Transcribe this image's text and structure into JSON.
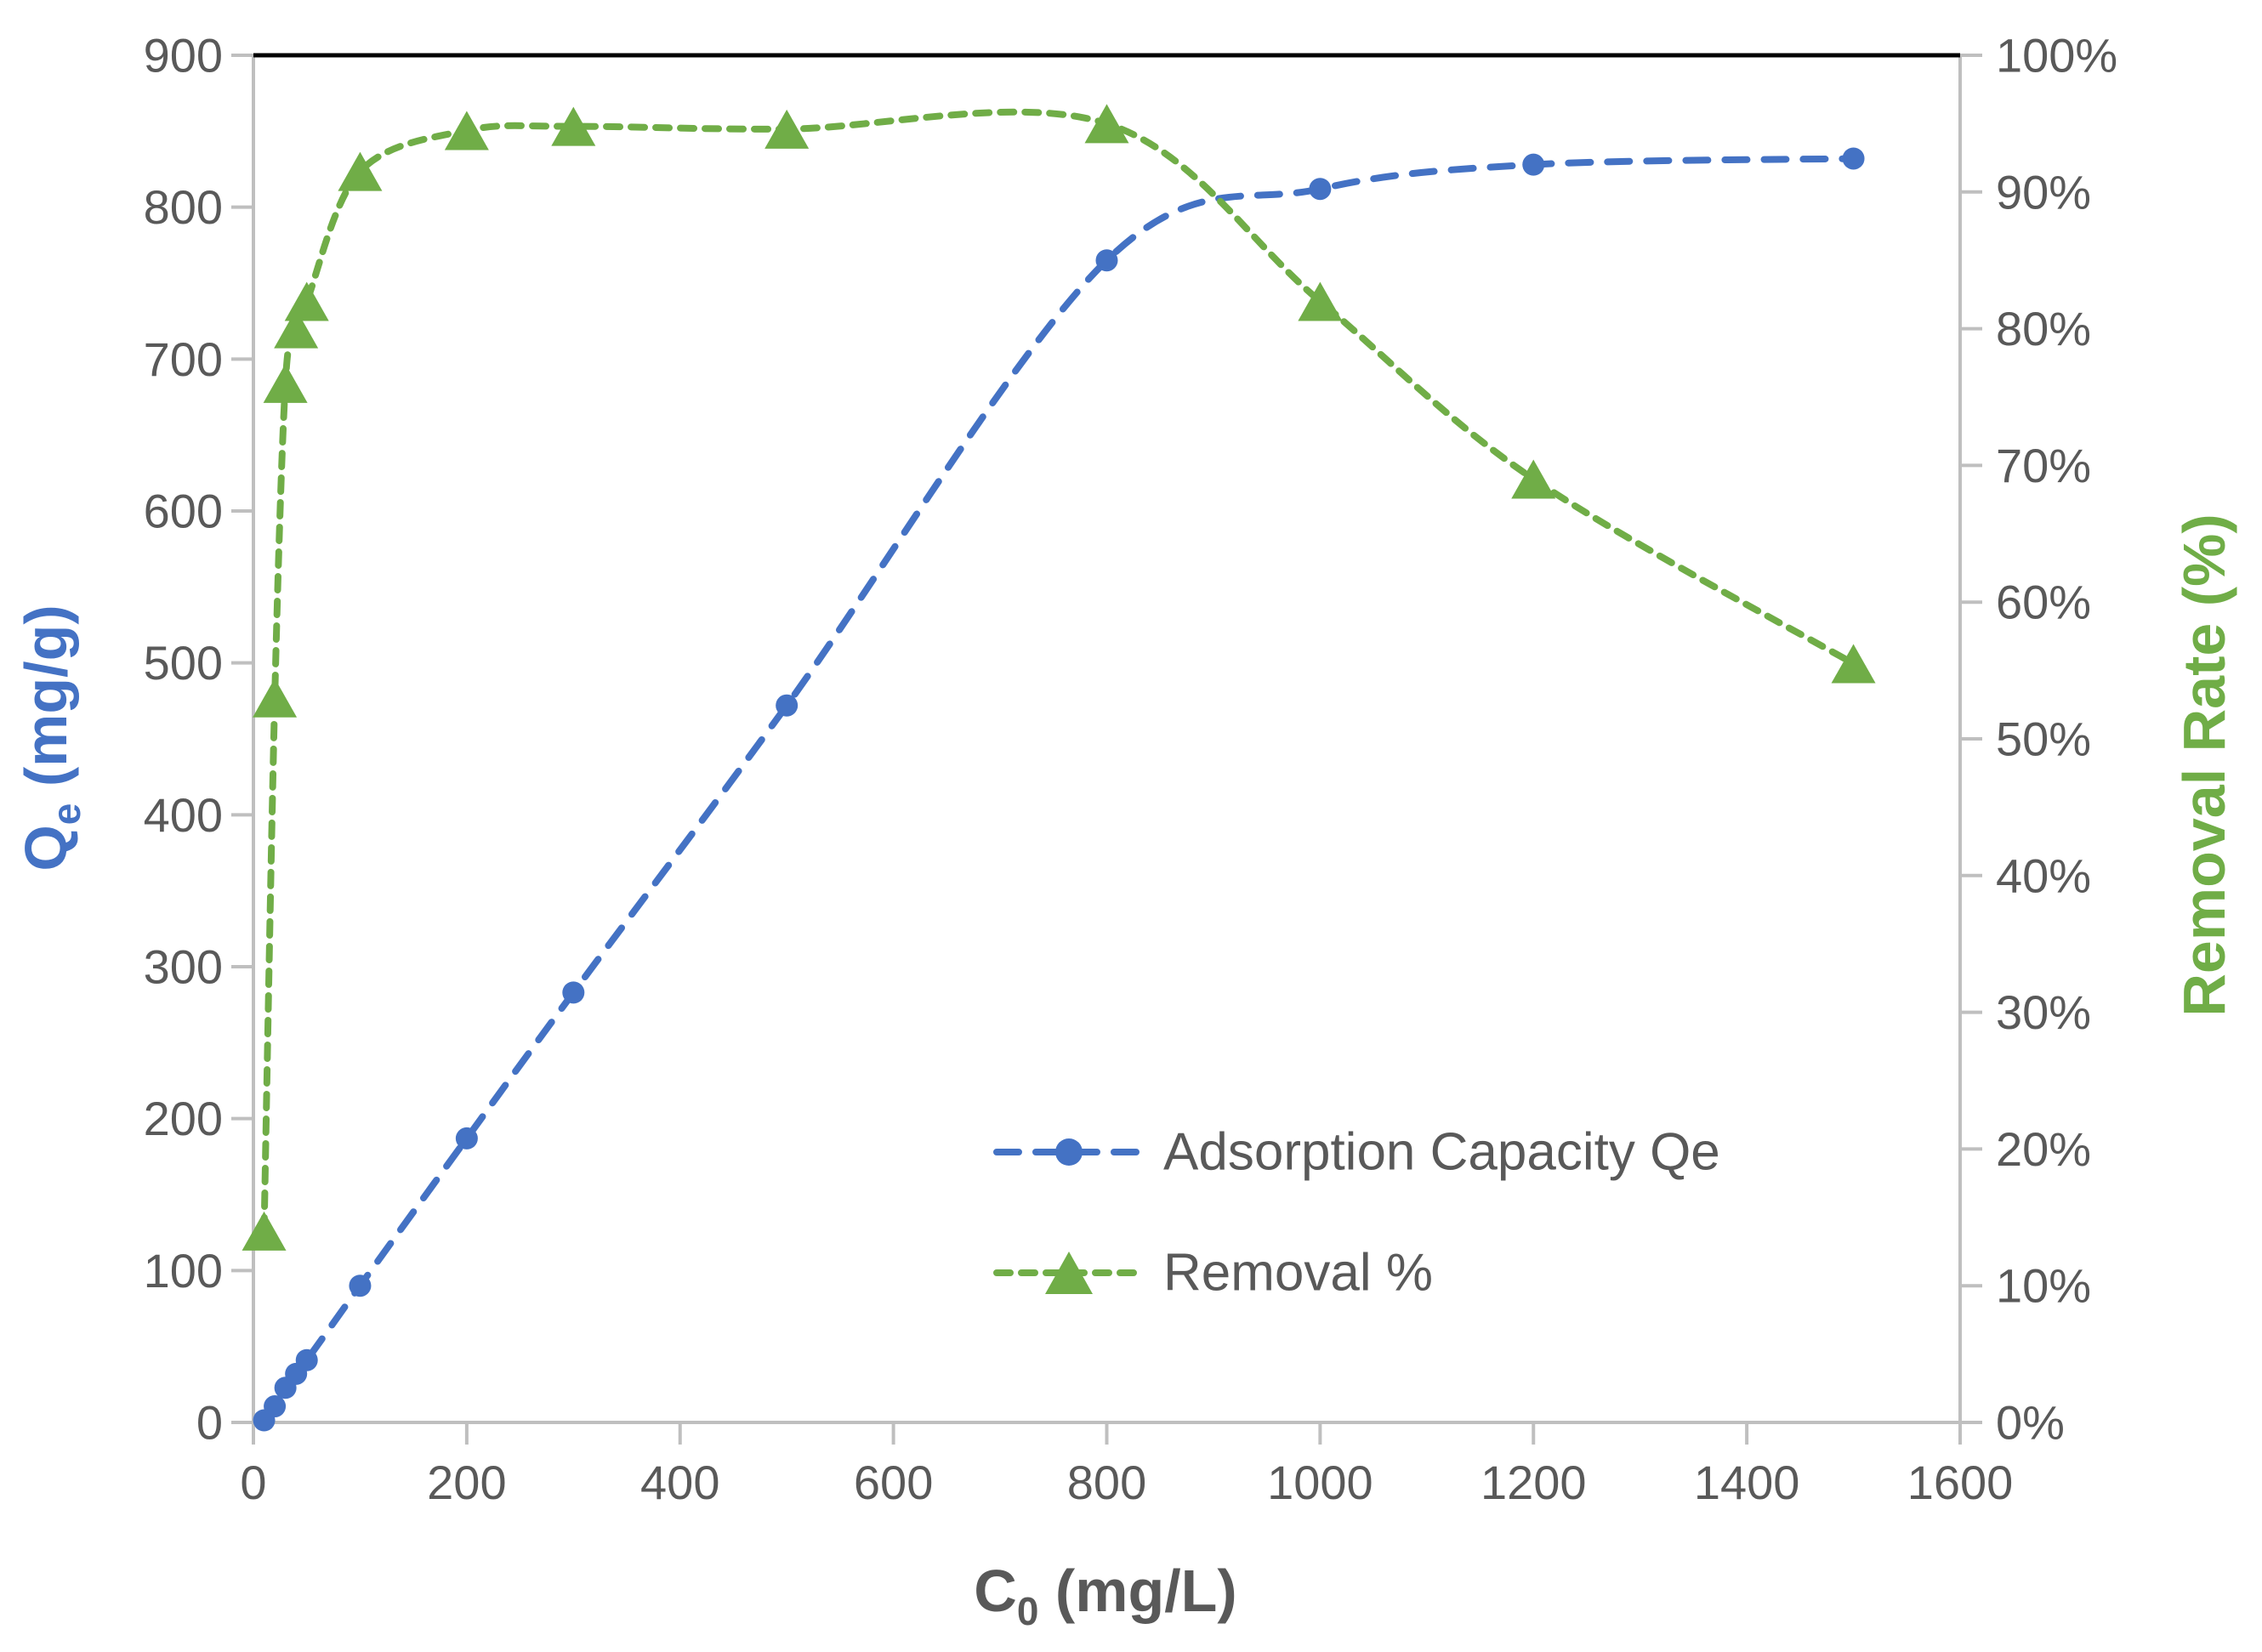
{
  "chart_data": {
    "type": "line",
    "title": "",
    "x": [
      10,
      20,
      30,
      40,
      50,
      100,
      200,
      300,
      500,
      800,
      1000,
      1200,
      1500
    ],
    "series": [
      {
        "name": "Adsorption Capacity Qe",
        "axis": "left",
        "marker": "circle",
        "color": "#4472C4",
        "line_style": "dashed",
        "values": [
          1.4,
          10.6,
          22.8,
          32,
          41,
          90,
          187,
          283,
          472,
          765,
          812,
          828,
          832
        ]
      },
      {
        "name": "Removal %",
        "axis": "right",
        "marker": "triangle",
        "color": "#70AD47",
        "line_style": "dashed",
        "values": [
          14,
          53,
          76,
          80,
          82,
          91.5,
          94.5,
          94.8,
          94.6,
          95,
          82,
          69,
          55.5
        ]
      }
    ],
    "xlabel": "C0 (mg/L)",
    "ylabel_left": "Qe (mg/g)",
    "ylabel_right": "Removal Rate (%)",
    "x_axis": {
      "min": 0,
      "max": 1600,
      "step": 200
    },
    "y_axis_left": {
      "min": 0,
      "max": 900,
      "step": 100
    },
    "y_axis_right": {
      "min": 0,
      "max": 100,
      "step": 10,
      "format": "percent"
    },
    "grid": false,
    "legend_position": "inside lower-right",
    "smooth_lines": true
  },
  "labels": {
    "x_title": {
      "main": "C",
      "sub": "0",
      "rest": " (mg/L)"
    },
    "y_left_title": {
      "main": "Q",
      "sub": "e",
      "rest": " (mg/g)"
    },
    "y_right_title": "Removal Rate (%)"
  },
  "colors": {
    "series_qe": "#4472C4",
    "series_removal": "#70AD47",
    "tick_text": "#595959",
    "axis_line": "#BFBFBF",
    "plot_top_border": "#000000",
    "x_title_text": "#595959",
    "legend_text": "#595959",
    "background": "#FFFFFF"
  }
}
